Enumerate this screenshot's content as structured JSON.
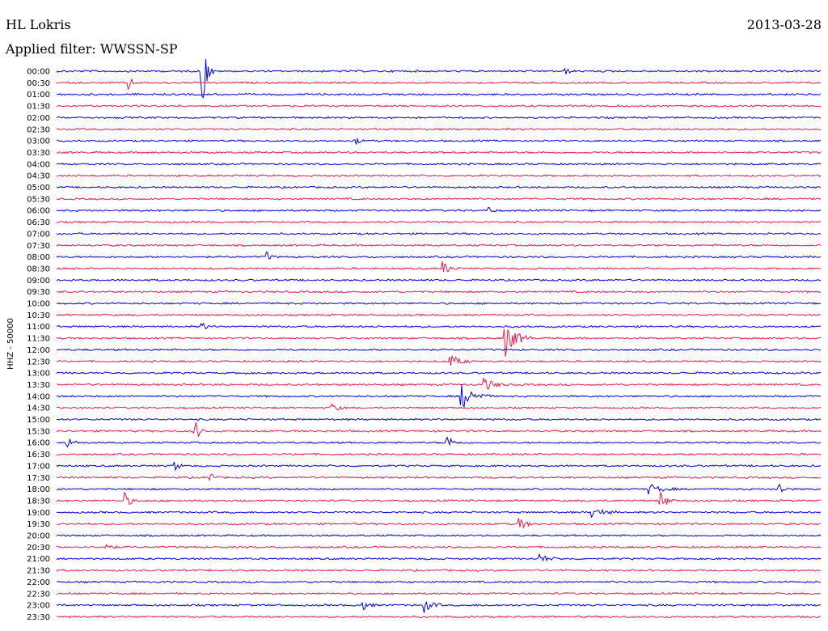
{
  "header": {
    "station": "HL Lokris",
    "date": "2013-03-28",
    "filter": "Applied filter: WWSSN-SP"
  },
  "chart_data": {
    "type": "line",
    "title": "",
    "ylabel": "HHZ - 50000",
    "xlabel": "",
    "row_labels": [
      "00:00",
      "00:30",
      "01:00",
      "01:30",
      "02:00",
      "02:30",
      "03:00",
      "03:30",
      "04:00",
      "04:30",
      "05:00",
      "05:30",
      "06:00",
      "06:30",
      "07:00",
      "07:30",
      "08:00",
      "08:30",
      "09:00",
      "09:30",
      "10:00",
      "10:30",
      "11:00",
      "11:30",
      "12:00",
      "12:30",
      "13:00",
      "13:30",
      "14:00",
      "14:30",
      "15:00",
      "15:30",
      "16:00",
      "16:30",
      "17:00",
      "17:30",
      "18:00",
      "18:30",
      "19:00",
      "19:30",
      "20:00",
      "20:30",
      "21:00",
      "21:30",
      "22:00",
      "22:30",
      "23:00",
      "23:30"
    ],
    "colors": [
      "#0000e6",
      "#ec1a4a"
    ],
    "events": [
      {
        "row": "00:00",
        "pos": 0.19,
        "amp": 50,
        "dur": 0.015
      },
      {
        "row": "00:00",
        "pos": 0.665,
        "amp": 7,
        "dur": 0.01
      },
      {
        "row": "00:30",
        "pos": 0.095,
        "amp": 9,
        "dur": 0.01
      },
      {
        "row": "03:00",
        "pos": 0.39,
        "amp": 6,
        "dur": 0.012
      },
      {
        "row": "06:00",
        "pos": 0.565,
        "amp": 7,
        "dur": 0.012
      },
      {
        "row": "08:00",
        "pos": 0.275,
        "amp": 6,
        "dur": 0.012
      },
      {
        "row": "08:30",
        "pos": 0.505,
        "amp": 9,
        "dur": 0.02
      },
      {
        "row": "11:00",
        "pos": 0.19,
        "amp": 5,
        "dur": 0.015
      },
      {
        "row": "11:30",
        "pos": 0.587,
        "amp": 22,
        "dur": 0.035
      },
      {
        "row": "12:30",
        "pos": 0.515,
        "amp": 8,
        "dur": 0.03
      },
      {
        "row": "13:00",
        "pos": 0.24,
        "amp": 5,
        "dur": 0.012
      },
      {
        "row": "13:30",
        "pos": 0.56,
        "amp": 8,
        "dur": 0.03
      },
      {
        "row": "14:00",
        "pos": 0.53,
        "amp": 15,
        "dur": 0.04
      },
      {
        "row": "14:30",
        "pos": 0.36,
        "amp": 6,
        "dur": 0.02
      },
      {
        "row": "15:30",
        "pos": 0.18,
        "amp": 18,
        "dur": 0.015
      },
      {
        "row": "16:00",
        "pos": 0.013,
        "amp": 8,
        "dur": 0.02
      },
      {
        "row": "16:00",
        "pos": 0.51,
        "amp": 10,
        "dur": 0.02
      },
      {
        "row": "17:00",
        "pos": 0.155,
        "amp": 7,
        "dur": 0.012
      },
      {
        "row": "17:30",
        "pos": 0.2,
        "amp": 10,
        "dur": 0.012
      },
      {
        "row": "18:00",
        "pos": 0.775,
        "amp": 6,
        "dur": 0.04
      },
      {
        "row": "18:00",
        "pos": 0.945,
        "amp": 10,
        "dur": 0.015
      },
      {
        "row": "18:30",
        "pos": 0.09,
        "amp": 10,
        "dur": 0.015
      },
      {
        "row": "18:30",
        "pos": 0.79,
        "amp": 12,
        "dur": 0.02
      },
      {
        "row": "19:00",
        "pos": 0.7,
        "amp": 7,
        "dur": 0.035
      },
      {
        "row": "19:30",
        "pos": 0.605,
        "amp": 8,
        "dur": 0.02
      },
      {
        "row": "20:30",
        "pos": 0.065,
        "amp": 6,
        "dur": 0.015
      },
      {
        "row": "21:00",
        "pos": 0.63,
        "amp": 6,
        "dur": 0.03
      },
      {
        "row": "23:00",
        "pos": 0.4,
        "amp": 6,
        "dur": 0.02
      },
      {
        "row": "23:00",
        "pos": 0.48,
        "amp": 9,
        "dur": 0.025
      }
    ]
  }
}
